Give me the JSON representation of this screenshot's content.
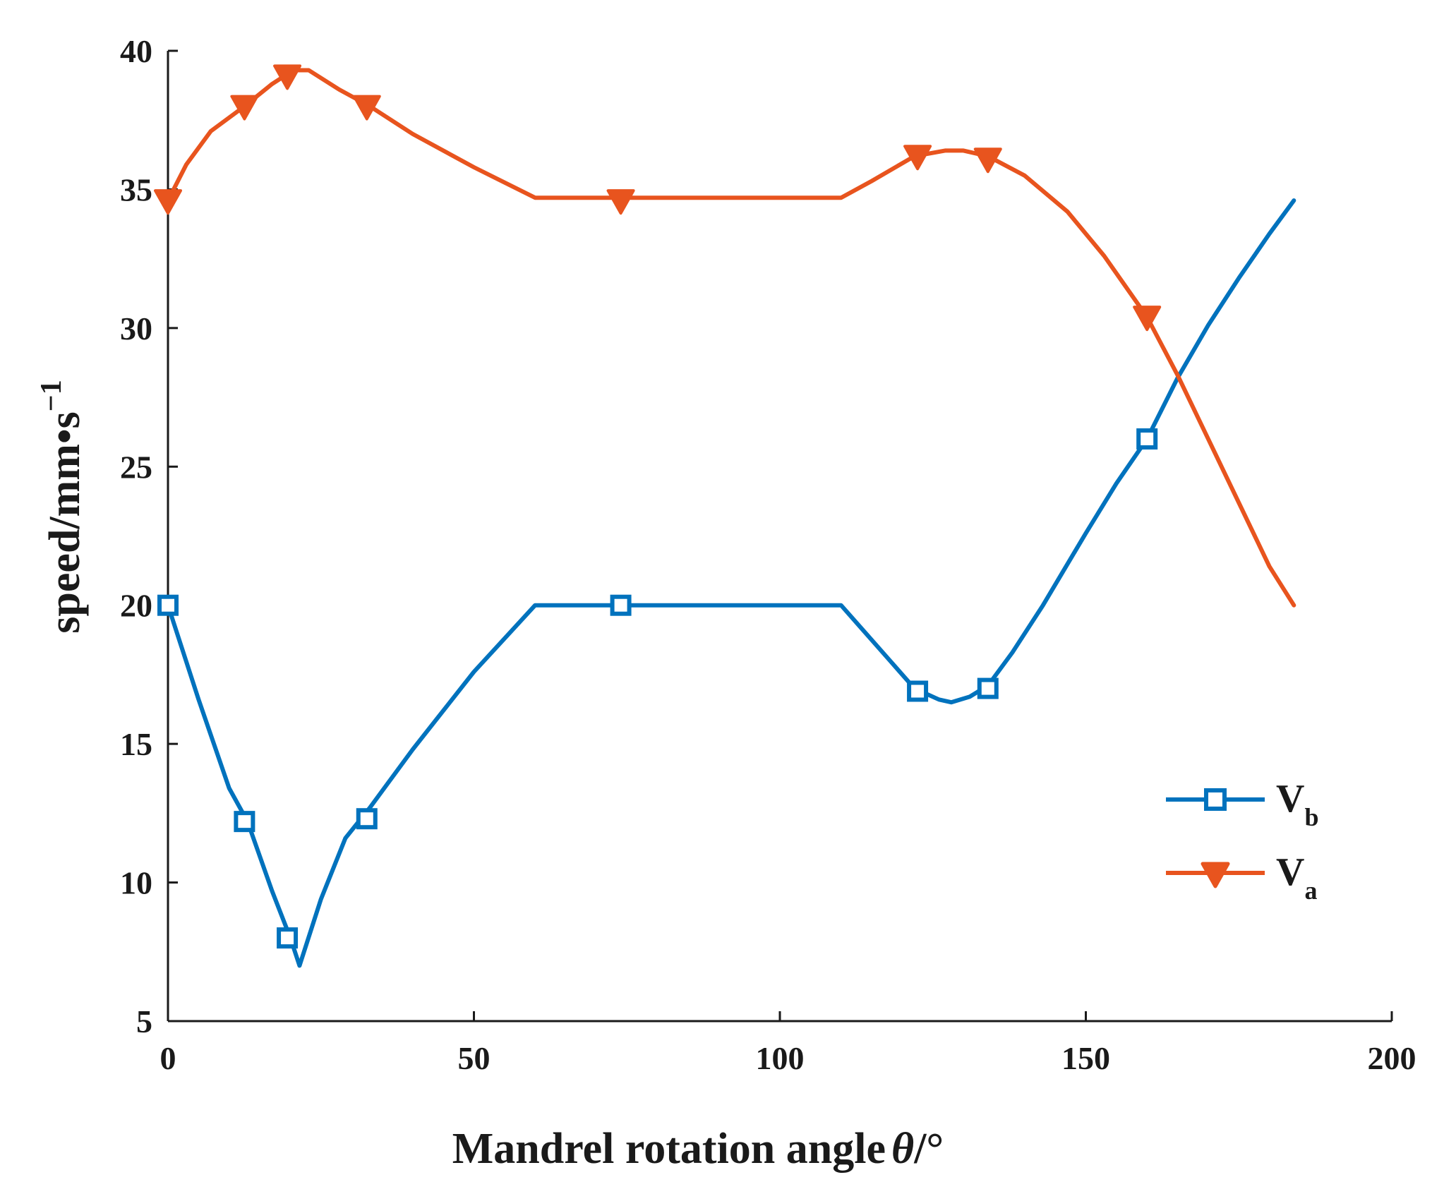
{
  "chart_data": {
    "type": "line",
    "title": "",
    "xlabel": "Mandrel rotation angle",
    "xlabel_symbol": "θ",
    "xlabel_unit": "/°",
    "ylabel": "speed/mm•s",
    "ylabel_exponent": "−1",
    "xlim": [
      0,
      200
    ],
    "ylim": [
      5,
      40
    ],
    "x_ticks": [
      0,
      50,
      100,
      150,
      200
    ],
    "y_ticks": [
      5,
      10,
      15,
      20,
      25,
      30,
      35,
      40
    ],
    "x_tick_labels": [
      "0",
      "50",
      "100",
      "150",
      "200"
    ],
    "y_tick_labels": [
      "5",
      "10",
      "15",
      "20",
      "25",
      "30",
      "35",
      "40"
    ],
    "grid": false,
    "legend_position": "right",
    "series": [
      {
        "name": "Vb",
        "label_main": "V",
        "label_sub": "b",
        "color": "#0072BD",
        "marker": "square",
        "curve_x": [
          0,
          5,
          10,
          13,
          17,
          20,
          21.5,
          25,
          29,
          33,
          40,
          50,
          60,
          75,
          90,
          110,
          118,
          122,
          126,
          128,
          131,
          134,
          138,
          143,
          150,
          155,
          160,
          165,
          170,
          175,
          180,
          184
        ],
        "curve_y": [
          20,
          16.6,
          13.4,
          12.2,
          9.7,
          8.0,
          7.0,
          9.4,
          11.6,
          12.7,
          14.8,
          17.6,
          20,
          20,
          20,
          20,
          18.0,
          17.0,
          16.6,
          16.5,
          16.7,
          17.1,
          18.3,
          20.0,
          22.6,
          24.4,
          26.0,
          28.2,
          30.1,
          31.8,
          33.4,
          34.6
        ],
        "marker_x": [
          0,
          12.5,
          19.5,
          32.5,
          74,
          122.5,
          134,
          160
        ],
        "marker_y": [
          20,
          12.2,
          8.0,
          12.3,
          20,
          16.9,
          17.0,
          26.0
        ]
      },
      {
        "name": "Va",
        "label_main": "V",
        "label_sub": "a",
        "color": "#E8541E",
        "marker": "triangle-down",
        "curve_x": [
          0,
          3,
          7,
          12.5,
          17,
          20.5,
          23,
          28,
          33,
          40,
          50,
          60,
          75,
          90,
          110,
          115,
          122,
          127,
          130,
          134,
          140,
          147,
          153,
          160,
          165,
          170,
          175,
          180,
          184
        ],
        "curve_y": [
          34.6,
          35.9,
          37.1,
          38.0,
          38.8,
          39.3,
          39.3,
          38.6,
          38.0,
          37.0,
          35.8,
          34.7,
          34.7,
          34.7,
          34.7,
          35.3,
          36.2,
          36.4,
          36.4,
          36.2,
          35.5,
          34.2,
          32.6,
          30.4,
          28.3,
          26.0,
          23.7,
          21.4,
          20.0
        ],
        "marker_x": [
          0,
          12.5,
          19.5,
          32.5,
          74,
          122.5,
          134,
          160
        ],
        "marker_y": [
          34.6,
          38.0,
          39.1,
          38.0,
          34.6,
          36.2,
          36.1,
          30.4
        ]
      }
    ]
  }
}
